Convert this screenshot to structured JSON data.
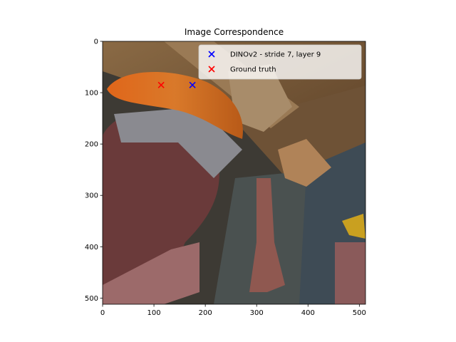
{
  "chart_data": {
    "type": "scatter",
    "title": "Image Correspondence",
    "xlabel": "",
    "ylabel": "",
    "xlim": [
      0,
      512
    ],
    "ylim": [
      512,
      0
    ],
    "y_inverted": true,
    "xticks": [
      0,
      100,
      200,
      300,
      400,
      500
    ],
    "yticks": [
      0,
      100,
      200,
      300,
      400,
      500
    ],
    "grid": false,
    "legend": "top-right",
    "background": "photo image (rendered 3D scene with wooden beams, orange object, bottles)",
    "series": [
      {
        "name": "DINOv2 - stride 7, layer 9",
        "marker": "x",
        "color": "#0000ff",
        "points": [
          [
            175,
            85
          ]
        ]
      },
      {
        "name": "Ground truth",
        "marker": "x",
        "color": "#ff0000",
        "points": [
          [
            114,
            85
          ]
        ]
      }
    ]
  }
}
